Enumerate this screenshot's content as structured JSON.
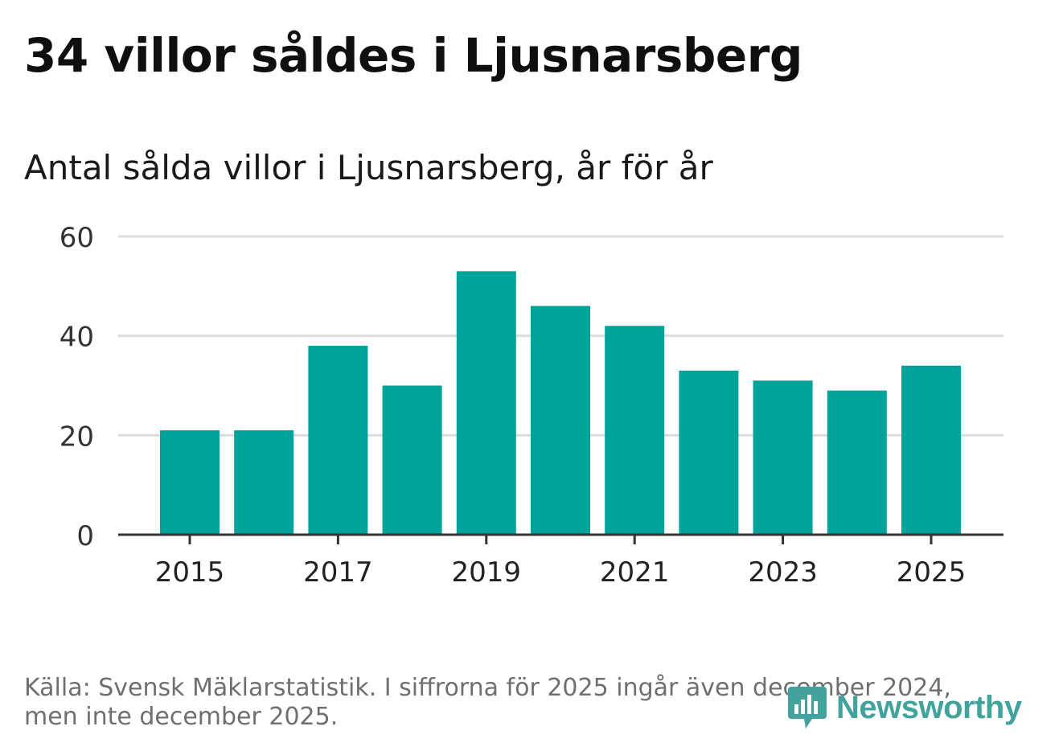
{
  "header": {
    "title": "34 villor såldes i Ljusnarsberg",
    "subtitle": "Antal sålda villor i Ljusnarsberg, år för år"
  },
  "chart_data": {
    "type": "bar",
    "categories": [
      "2015",
      "2016",
      "2017",
      "2018",
      "2019",
      "2020",
      "2021",
      "2022",
      "2023",
      "2024",
      "2025"
    ],
    "values": [
      21,
      21,
      38,
      30,
      53,
      46,
      42,
      33,
      31,
      29,
      34
    ],
    "x_tick_labels": [
      "2015",
      "2017",
      "2019",
      "2021",
      "2023",
      "2025"
    ],
    "y_ticks": [
      0,
      20,
      40,
      60
    ],
    "ylim": [
      0,
      60
    ],
    "xlabel": "",
    "ylabel": "",
    "grid": true,
    "bar_color": "#00a39a"
  },
  "footer": {
    "source": "Källa: Svensk Mäklarstatistik. I siffrorna för 2025 ingår även december 2024, men inte december 2025."
  },
  "logo": {
    "text": "Newsworthy",
    "icon": "newsworthy-logo-icon",
    "color": "#41a39b"
  }
}
